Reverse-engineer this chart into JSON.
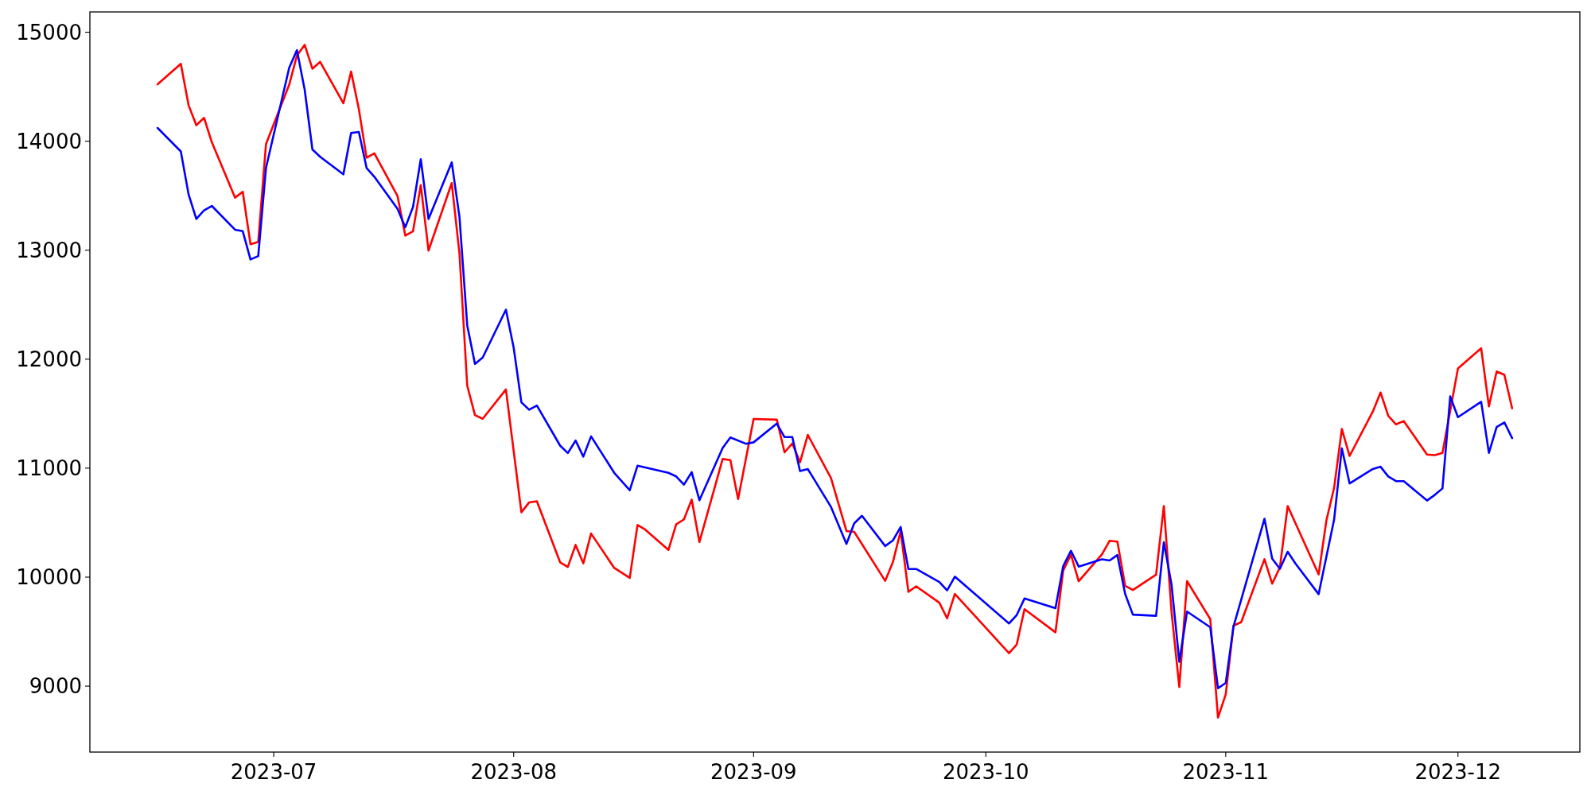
{
  "chart_data": {
    "type": "line",
    "xlim": [
      "2023-06-07T06:00",
      "2023-12-16T18:00"
    ],
    "xticks": [
      {
        "value": "2023-07-01",
        "label": "2023-07"
      },
      {
        "value": "2023-08-01",
        "label": "2023-08"
      },
      {
        "value": "2023-09-01",
        "label": "2023-09"
      },
      {
        "value": "2023-10-01",
        "label": "2023-10"
      },
      {
        "value": "2023-11-01",
        "label": "2023-11"
      },
      {
        "value": "2023-12-01",
        "label": "2023-12"
      }
    ],
    "ylim": [
      8395,
      15186
    ],
    "yticks": [
      9000,
      10000,
      11000,
      12000,
      13000,
      14000,
      15000
    ],
    "series": [
      {
        "color": "#ff0000",
        "x": [
          "2023-06-16",
          "2023-06-19",
          "2023-06-20",
          "2023-06-21",
          "2023-06-22",
          "2023-06-23",
          "2023-06-26",
          "2023-06-27",
          "2023-06-28",
          "2023-06-29",
          "2023-06-30",
          "2023-07-03",
          "2023-07-04",
          "2023-07-05",
          "2023-07-06",
          "2023-07-07",
          "2023-07-10",
          "2023-07-11",
          "2023-07-12",
          "2023-07-13",
          "2023-07-14",
          "2023-07-17",
          "2023-07-18",
          "2023-07-19",
          "2023-07-20",
          "2023-07-21",
          "2023-07-24",
          "2023-07-25",
          "2023-07-26",
          "2023-07-27",
          "2023-07-28",
          "2023-07-31",
          "2023-08-02",
          "2023-08-03",
          "2023-08-04",
          "2023-08-07",
          "2023-08-08",
          "2023-08-09",
          "2023-08-10",
          "2023-08-11",
          "2023-08-14",
          "2023-08-16",
          "2023-08-17",
          "2023-08-18",
          "2023-08-21",
          "2023-08-22",
          "2023-08-23",
          "2023-08-24",
          "2023-08-25",
          "2023-08-28",
          "2023-08-29",
          "2023-08-30",
          "2023-09-01",
          "2023-09-04",
          "2023-09-05",
          "2023-09-06",
          "2023-09-07",
          "2023-09-08",
          "2023-09-11",
          "2023-09-13",
          "2023-09-14",
          "2023-09-18",
          "2023-09-19",
          "2023-09-20",
          "2023-09-21",
          "2023-09-22",
          "2023-09-25",
          "2023-09-26",
          "2023-09-27",
          "2023-10-04",
          "2023-10-05",
          "2023-10-06",
          "2023-10-10",
          "2023-10-11",
          "2023-10-12",
          "2023-10-13",
          "2023-10-16",
          "2023-10-17",
          "2023-10-18",
          "2023-10-19",
          "2023-10-20",
          "2023-10-23",
          "2023-10-24",
          "2023-10-25",
          "2023-10-26",
          "2023-10-27",
          "2023-10-30",
          "2023-10-31",
          "2023-11-01",
          "2023-11-02",
          "2023-11-03",
          "2023-11-06",
          "2023-11-07",
          "2023-11-08",
          "2023-11-09",
          "2023-11-13",
          "2023-11-14",
          "2023-11-15",
          "2023-11-16",
          "2023-11-17",
          "2023-11-20",
          "2023-11-21",
          "2023-11-22",
          "2023-11-23",
          "2023-11-24",
          "2023-11-27",
          "2023-11-28",
          "2023-11-29",
          "2023-11-30",
          "2023-12-01",
          "2023-12-04",
          "2023-12-05",
          "2023-12-06",
          "2023-12-07",
          "2023-12-08"
        ],
        "values": [
          14522,
          14710,
          14330,
          14147,
          14214,
          13991,
          13482,
          13536,
          13054,
          13076,
          13973,
          14518,
          14786,
          14884,
          14665,
          14728,
          14348,
          14638,
          14295,
          13848,
          13888,
          13496,
          13134,
          13174,
          13598,
          12996,
          13616,
          12970,
          11758,
          11487,
          11453,
          11722,
          10595,
          10686,
          10696,
          10136,
          10094,
          10296,
          10127,
          10400,
          10084,
          9993,
          10478,
          10436,
          10250,
          10485,
          10530,
          10712,
          10322,
          11084,
          11074,
          10716,
          11451,
          11445,
          11145,
          11227,
          11054,
          11305,
          10908,
          10423,
          10416,
          9966,
          10139,
          10423,
          9865,
          9916,
          9765,
          9622,
          9846,
          9302,
          9383,
          9706,
          9494,
          10061,
          10206,
          9963,
          10209,
          10334,
          10326,
          9921,
          9882,
          10022,
          10652,
          9678,
          8992,
          9963,
          9615,
          8712,
          8925,
          9555,
          9588,
          10165,
          9940,
          10091,
          10652,
          10025,
          10519,
          10820,
          11359,
          11112,
          11519,
          11694,
          11480,
          11402,
          11432,
          11125,
          11119,
          11140,
          11528,
          11914,
          12100,
          11567,
          11887,
          11856,
          11549
        ]
      },
      {
        "color": "#0000ff",
        "x": [
          "2023-06-16",
          "2023-06-19",
          "2023-06-20",
          "2023-06-21",
          "2023-06-22",
          "2023-06-23",
          "2023-06-26",
          "2023-06-27",
          "2023-06-28",
          "2023-06-29",
          "2023-06-30",
          "2023-07-03",
          "2023-07-04",
          "2023-07-05",
          "2023-07-06",
          "2023-07-07",
          "2023-07-10",
          "2023-07-11",
          "2023-07-12",
          "2023-07-13",
          "2023-07-14",
          "2023-07-17",
          "2023-07-18",
          "2023-07-19",
          "2023-07-20",
          "2023-07-21",
          "2023-07-24",
          "2023-07-25",
          "2023-07-26",
          "2023-07-27",
          "2023-07-28",
          "2023-07-31",
          "2023-08-01",
          "2023-08-02",
          "2023-08-03",
          "2023-08-04",
          "2023-08-07",
          "2023-08-08",
          "2023-08-09",
          "2023-08-10",
          "2023-08-11",
          "2023-08-14",
          "2023-08-16",
          "2023-08-17",
          "2023-08-21",
          "2023-08-22",
          "2023-08-23",
          "2023-08-24",
          "2023-08-25",
          "2023-08-28",
          "2023-08-29",
          "2023-08-31",
          "2023-09-01",
          "2023-09-04",
          "2023-09-05",
          "2023-09-06",
          "2023-09-07",
          "2023-09-08",
          "2023-09-11",
          "2023-09-13",
          "2023-09-14",
          "2023-09-15",
          "2023-09-18",
          "2023-09-19",
          "2023-09-20",
          "2023-09-21",
          "2023-09-22",
          "2023-09-25",
          "2023-09-26",
          "2023-09-27",
          "2023-10-04",
          "2023-10-05",
          "2023-10-06",
          "2023-10-10",
          "2023-10-11",
          "2023-10-12",
          "2023-10-13",
          "2023-10-16",
          "2023-10-17",
          "2023-10-18",
          "2023-10-19",
          "2023-10-20",
          "2023-10-23",
          "2023-10-24",
          "2023-10-25",
          "2023-10-26",
          "2023-10-27",
          "2023-10-30",
          "2023-10-31",
          "2023-11-01",
          "2023-11-02",
          "2023-11-06",
          "2023-11-07",
          "2023-11-08",
          "2023-11-09",
          "2023-11-10",
          "2023-11-13",
          "2023-11-15",
          "2023-11-16",
          "2023-11-17",
          "2023-11-20",
          "2023-11-21",
          "2023-11-22",
          "2023-11-23",
          "2023-11-24",
          "2023-11-27",
          "2023-11-28",
          "2023-11-29",
          "2023-11-30",
          "2023-12-01",
          "2023-12-04",
          "2023-12-05",
          "2023-12-06",
          "2023-12-07",
          "2023-12-08"
        ],
        "values": [
          14121,
          13906,
          13513,
          13286,
          13366,
          13406,
          13188,
          13174,
          12915,
          12946,
          13754,
          14674,
          14835,
          14473,
          13924,
          13857,
          13696,
          14076,
          14085,
          13754,
          13674,
          13379,
          13210,
          13397,
          13835,
          13286,
          13806,
          13304,
          12311,
          11956,
          12015,
          12454,
          12106,
          11604,
          11536,
          11575,
          11207,
          11139,
          11253,
          11106,
          11292,
          10957,
          10797,
          11022,
          10957,
          10924,
          10849,
          10963,
          10706,
          11185,
          11282,
          11224,
          11237,
          11409,
          11285,
          11285,
          10973,
          10992,
          10644,
          10305,
          10494,
          10563,
          10285,
          10337,
          10460,
          10075,
          10075,
          9955,
          9879,
          10005,
          9575,
          9653,
          9804,
          9715,
          10102,
          10242,
          10097,
          10164,
          10153,
          10203,
          9846,
          9656,
          9645,
          10320,
          9930,
          9223,
          9684,
          9540,
          8980,
          9030,
          9547,
          10535,
          10170,
          10076,
          10233,
          10125,
          9844,
          10528,
          11182,
          10860,
          10992,
          11013,
          10923,
          10881,
          10881,
          10703,
          10754,
          10814,
          11658,
          11468,
          11609,
          11140,
          11378,
          11420,
          11275
        ]
      }
    ]
  }
}
